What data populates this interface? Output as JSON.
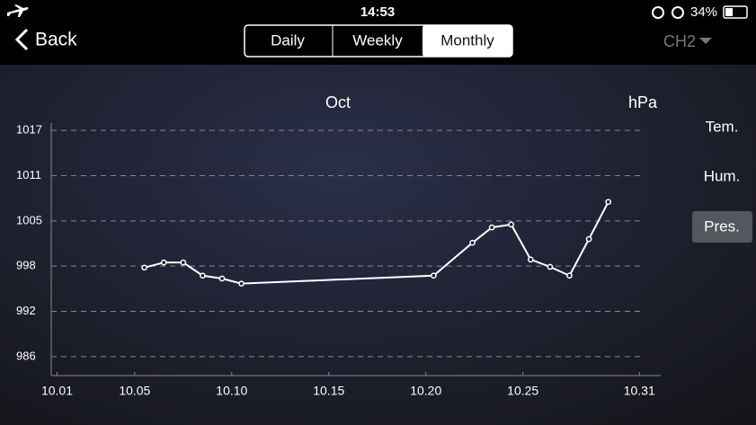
{
  "status_bar": {
    "time": "14:53",
    "battery": "34%"
  },
  "nav": {
    "back": "Back",
    "channel": "CH2"
  },
  "tabs": [
    "Daily",
    "Weekly",
    "Monthly"
  ],
  "side_buttons": [
    "Tem.",
    "Hum.",
    "Pres."
  ],
  "chart_data": {
    "type": "line",
    "title": "Oct",
    "y_label": "hPa",
    "x": [
      5.5,
      6.5,
      7.5,
      8.5,
      9.5,
      10.5,
      20.4,
      22.4,
      23.4,
      24.4,
      25.4,
      26.4,
      27.4,
      28.4,
      29.4
    ],
    "values": [
      998.2,
      998.9,
      998.9,
      997.1,
      996.7,
      996.0,
      997.1,
      1001.6,
      1003.7,
      1004.1,
      999.3,
      998.3,
      997.1,
      1002.1,
      1007.2
    ],
    "color": "#ffffff",
    "xlim": [
      0.7,
      32.1
    ],
    "ylim": [
      983.4,
      1018
    ],
    "xticks": [
      {
        "value": 1,
        "label": "10.01"
      },
      {
        "value": 5,
        "label": "10.05"
      },
      {
        "value": 10,
        "label": "10.10"
      },
      {
        "value": 15,
        "label": "10.15"
      },
      {
        "value": 20,
        "label": "10.20"
      },
      {
        "value": 25,
        "label": "10.25"
      },
      {
        "value": 31,
        "label": "10.31"
      }
    ],
    "yticks": [
      {
        "value": 986,
        "label": "986"
      },
      {
        "value": 992.2,
        "label": "992"
      },
      {
        "value": 998.4,
        "label": "998"
      },
      {
        "value": 1004.6,
        "label": "1005"
      },
      {
        "value": 1010.8,
        "label": "1011"
      },
      1017
    ],
    "grid": true
  }
}
